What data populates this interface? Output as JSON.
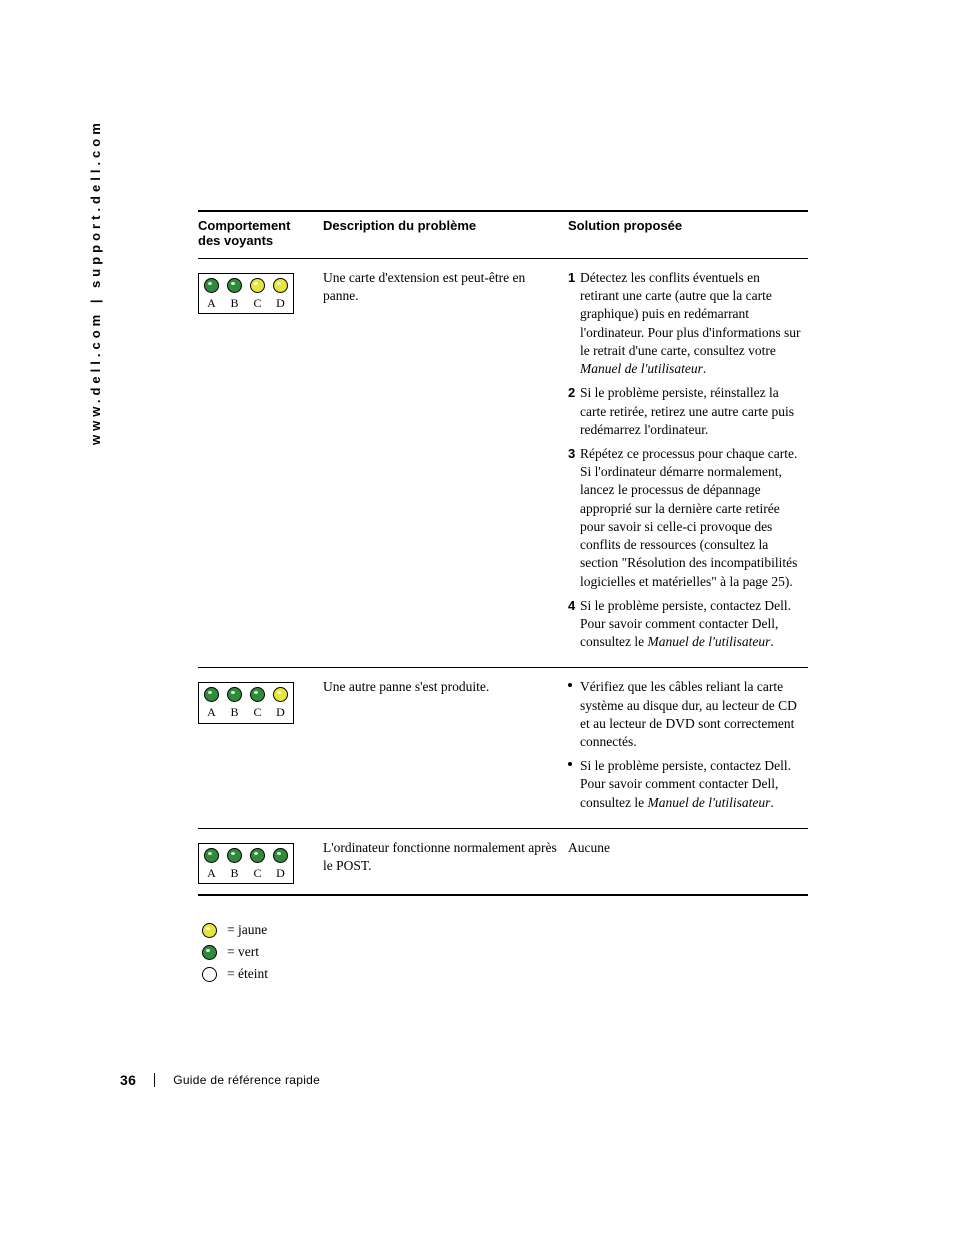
{
  "colors": {
    "yellow": "#e6e63a",
    "green": "#2e8b3a",
    "off": "#ffffff",
    "border": "#000000"
  },
  "sideText": "www.dell.com | support.dell.com",
  "table": {
    "headers": {
      "col1a": "Comportement",
      "col1b": "des voyants",
      "col2": "Description du problème",
      "col3": "Solution proposée"
    },
    "rows": [
      {
        "lights": [
          "green",
          "green",
          "yellow",
          "yellow"
        ],
        "labels": [
          "A",
          "B",
          "C",
          "D"
        ],
        "description": "Une carte d'extension est peut-être en panne.",
        "solutions": [
          {
            "num": "1",
            "text_before": "Détectez les conflits éventuels en retirant une carte (autre que la carte graphique) puis en redémarrant l'ordinateur. Pour plus d'informations sur le retrait d'une carte, consultez votre ",
            "italic": "Manuel de l'utilisateur",
            "text_after": "."
          },
          {
            "num": "2",
            "text_before": "Si le problème persiste, réinstallez la carte retirée, retirez une autre carte puis redémarrez l'ordinateur.",
            "italic": "",
            "text_after": ""
          },
          {
            "num": "3",
            "text_before": "Répétez ce processus pour chaque carte. Si l'ordinateur démarre normalement, lancez le processus de dépannage approprié sur la dernière carte retirée pour savoir si celle-ci provoque des conflits de ressources (consultez la section \"Résolution des incompatibilités logicielles et matérielles\" à la page 25).",
            "italic": "",
            "text_after": ""
          },
          {
            "num": "4",
            "text_before": "Si le problème persiste, contactez Dell. Pour savoir comment contacter Dell, consultez le ",
            "italic": "Manuel de l'utilisateur",
            "text_after": "."
          }
        ]
      },
      {
        "lights": [
          "green",
          "green",
          "green",
          "yellow"
        ],
        "labels": [
          "A",
          "B",
          "C",
          "D"
        ],
        "description": "Une autre panne s'est produite.",
        "solutions": [
          {
            "bullet": true,
            "text_before": "Vérifiez que les câbles reliant la carte système au disque dur, au lecteur de CD et au lecteur de DVD sont correctement connectés.",
            "italic": "",
            "text_after": ""
          },
          {
            "bullet": true,
            "text_before": "Si le problème persiste, contactez Dell. Pour savoir comment contacter Dell, consultez le ",
            "italic": "Manuel de l'utilisateur",
            "text_after": "."
          }
        ]
      },
      {
        "lights": [
          "green",
          "green",
          "green",
          "green"
        ],
        "labels": [
          "A",
          "B",
          "C",
          "D"
        ],
        "description": "L'ordinateur fonctionne normalement après le POST.",
        "solution_plain": "Aucune"
      }
    ]
  },
  "legend": [
    {
      "color": "yellow",
      "label": "= jaune"
    },
    {
      "color": "green",
      "label": "= vert"
    },
    {
      "color": "off",
      "label": "= éteint"
    }
  ],
  "footer": {
    "page": "36",
    "title": "Guide de référence rapide"
  }
}
